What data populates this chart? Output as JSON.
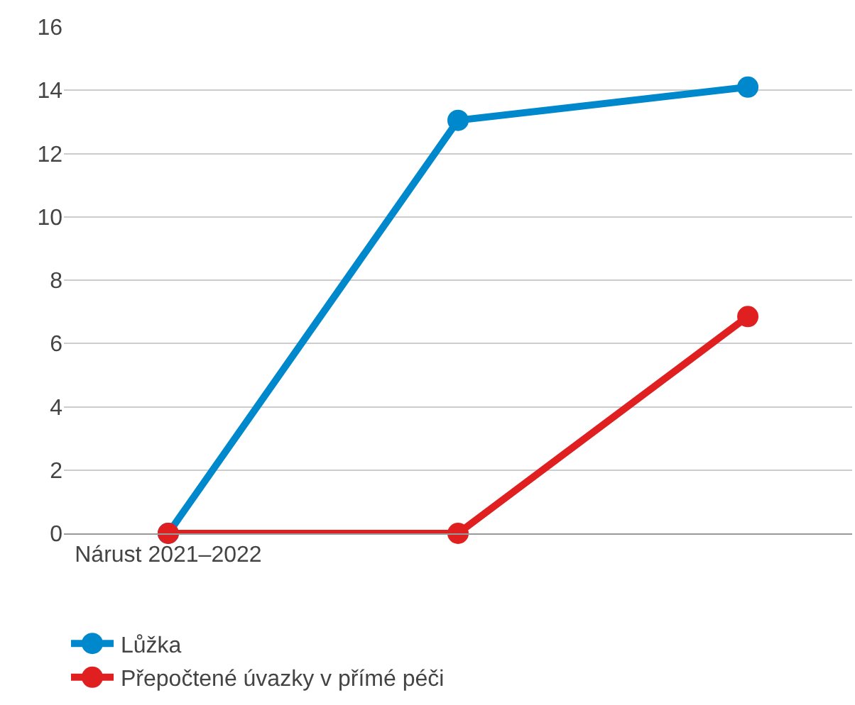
{
  "chart_data": {
    "type": "line",
    "categories": [
      "Nárust 2021–2022",
      null,
      null
    ],
    "series": [
      {
        "name": "Lůžka",
        "color": "#0088cc",
        "values": [
          0,
          13.05,
          14.1
        ]
      },
      {
        "name": "Přepočtené úvazky v přímé péči",
        "color": "#e02020",
        "values": [
          0,
          0,
          6.85
        ]
      }
    ],
    "ylim": [
      0,
      16
    ],
    "yticks": [
      0,
      2,
      4,
      6,
      8,
      10,
      12,
      14,
      16
    ],
    "grid": "y",
    "legend": "bottom",
    "marker": "circle",
    "line_style": "solid"
  }
}
